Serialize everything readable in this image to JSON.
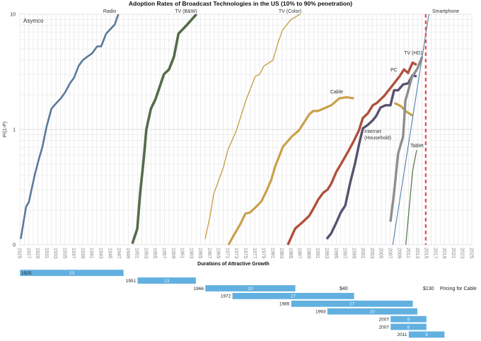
{
  "chart_data": {
    "type": "line",
    "title": "Adoption Rates of Broadcast Technologies in the US (10% to 90% penetration)",
    "xlabel": "Durations of Attractive Growth",
    "ylabel": "P/(1-P)",
    "yscale": "log10",
    "ylim_log10": [
      -1,
      1
    ],
    "xlim": [
      1925,
      2025
    ],
    "grid": true,
    "annotation": "Asymco",
    "yticks": [
      {
        "v": -1,
        "label": "0"
      },
      {
        "v": 0,
        "label": "1"
      },
      {
        "v": 1,
        "label": "10"
      }
    ],
    "xticks": [
      "1925",
      "1927",
      "1929",
      "1931",
      "1933",
      "1935",
      "1937",
      "1939",
      "1941",
      "1943",
      "1945",
      "1947",
      "1949",
      "1951",
      "1953",
      "1955",
      "1957",
      "1959",
      "1961",
      "1963",
      "1965",
      "1967",
      "1969",
      "1971",
      "1973",
      "1975",
      "1977",
      "1979",
      "1981",
      "1983",
      "1985",
      "1987",
      "1989",
      "1991",
      "1993",
      "1995",
      "1997",
      "1999",
      "2001",
      "2003",
      "2005",
      "2007",
      "2009",
      "2011",
      "2013",
      "2015",
      "2017",
      "2019",
      "2021",
      "2023",
      "2025"
    ],
    "series": [
      {
        "name": "Radio",
        "label": "Radio",
        "color": "#5b7a99",
        "points": [
          [
            1925.2,
            -0.95
          ],
          [
            1926.4,
            -0.67
          ],
          [
            1927.0,
            -0.63
          ],
          [
            1927.7,
            -0.5
          ],
          [
            1928.4,
            -0.38
          ],
          [
            1929.2,
            -0.26
          ],
          [
            1930.0,
            -0.15
          ],
          [
            1930.9,
            0.02
          ],
          [
            1932.0,
            0.18
          ],
          [
            1933.1,
            0.23
          ],
          [
            1934.1,
            0.27
          ],
          [
            1935.0,
            0.32
          ],
          [
            1936.1,
            0.4
          ],
          [
            1937.0,
            0.45
          ],
          [
            1938.0,
            0.55
          ],
          [
            1938.9,
            0.6
          ],
          [
            1939.9,
            0.63
          ],
          [
            1941.0,
            0.66
          ],
          [
            1942.1,
            0.72
          ],
          [
            1943.0,
            0.72
          ],
          [
            1944.1,
            0.83
          ],
          [
            1946.0,
            0.91
          ],
          [
            1946.8,
            1.0
          ]
        ]
      },
      {
        "name": "TV (B&W)",
        "label": "TV (B&W)",
        "color": "#566b4a",
        "points": [
          [
            1949.9,
            -0.99
          ],
          [
            1951.0,
            -0.86
          ],
          [
            1951.6,
            -0.56
          ],
          [
            1952.4,
            -0.26
          ],
          [
            1953.0,
            0.0
          ],
          [
            1954.0,
            0.18
          ],
          [
            1955.0,
            0.26
          ],
          [
            1956.9,
            0.48
          ],
          [
            1958.0,
            0.52
          ],
          [
            1959.1,
            0.63
          ],
          [
            1960.1,
            0.83
          ],
          [
            1961.8,
            0.9
          ],
          [
            1964.1,
            1.0
          ]
        ]
      },
      {
        "name": "TV (Color)",
        "label": "TV (Color)",
        "color": "#c9a04a",
        "points": [
          [
            1966.0,
            -0.95
          ],
          [
            1967.1,
            -0.75
          ],
          [
            1967.9,
            -0.56
          ],
          [
            1969.0,
            -0.44
          ],
          [
            1970.1,
            -0.32
          ],
          [
            1971.0,
            -0.18
          ],
          [
            1971.9,
            -0.1
          ],
          [
            1972.9,
            -0.01
          ],
          [
            1973.8,
            0.1
          ],
          [
            1975.1,
            0.26
          ],
          [
            1977.1,
            0.46
          ],
          [
            1978.1,
            0.48
          ],
          [
            1979.0,
            0.55
          ],
          [
            1981.0,
            0.6
          ],
          [
            1982.1,
            0.75
          ],
          [
            1983.1,
            0.86
          ],
          [
            1984.9,
            0.95
          ],
          [
            1987.0,
            1.0
          ]
        ]
      },
      {
        "name": "Cable",
        "label": "Cable",
        "color": "#c9a04a",
        "points": [
          [
            1971.2,
            -1.0
          ],
          [
            1972.3,
            -0.92
          ],
          [
            1973.8,
            -0.82
          ],
          [
            1974.9,
            -0.73
          ],
          [
            1975.9,
            -0.72
          ],
          [
            1977.3,
            -0.67
          ],
          [
            1978.5,
            -0.62
          ],
          [
            1979.6,
            -0.53
          ],
          [
            1980.6,
            -0.44
          ],
          [
            1981.5,
            -0.32
          ],
          [
            1982.4,
            -0.23
          ],
          [
            1983.2,
            -0.15
          ],
          [
            1985.2,
            -0.06
          ],
          [
            1986.7,
            -0.01
          ],
          [
            1987.9,
            0.06
          ],
          [
            1989.0,
            0.13
          ],
          [
            1989.9,
            0.16
          ],
          [
            1991.0,
            0.16
          ],
          [
            1993.9,
            0.21
          ],
          [
            1995.7,
            0.27
          ],
          [
            1997.3,
            0.28
          ],
          [
            1998.9,
            0.27
          ]
        ]
      },
      {
        "name": "Cable (later)",
        "label": "",
        "color": "#c9a04a",
        "points": [
          [
            2007.9,
            0.23
          ],
          [
            2009.4,
            0.2
          ],
          [
            2010.3,
            0.16
          ],
          [
            2011.9,
            0.12
          ]
        ]
      },
      {
        "name": "PC",
        "label": "PC",
        "color": "#b0503c",
        "points": [
          [
            1984.3,
            -1.0
          ],
          [
            1985.9,
            -0.86
          ],
          [
            1987.4,
            -0.81
          ],
          [
            1989.0,
            -0.75
          ],
          [
            1989.9,
            -0.69
          ],
          [
            1991.0,
            -0.61
          ],
          [
            1992.1,
            -0.55
          ],
          [
            1993.1,
            -0.52
          ],
          [
            1993.9,
            -0.47
          ],
          [
            1995.0,
            -0.37
          ],
          [
            1996.2,
            -0.29
          ],
          [
            1997.8,
            -0.18
          ],
          [
            1998.9,
            -0.1
          ],
          [
            2000.0,
            -0.01
          ],
          [
            2000.9,
            0.1
          ],
          [
            2002.0,
            0.14
          ],
          [
            2003.1,
            0.21
          ],
          [
            2004.0,
            0.23
          ],
          [
            2005.6,
            0.29
          ],
          [
            2007.2,
            0.37
          ],
          [
            2009.0,
            0.46
          ],
          [
            2010.0,
            0.52
          ],
          [
            2010.9,
            0.49
          ],
          [
            2011.9,
            0.58
          ],
          [
            2012.8,
            0.56
          ]
        ]
      },
      {
        "name": "Internet (Household)",
        "label": "Internet",
        "label2": "(Household)",
        "color": "#5a5170",
        "points": [
          [
            1992.9,
            -0.95
          ],
          [
            1993.9,
            -0.9
          ],
          [
            1995.0,
            -0.81
          ],
          [
            1996.0,
            -0.72
          ],
          [
            1997.0,
            -0.66
          ],
          [
            1998.1,
            -0.46
          ],
          [
            1999.2,
            -0.29
          ],
          [
            2000.1,
            -0.12
          ],
          [
            2000.9,
            0.01
          ],
          [
            2002.0,
            0.04
          ],
          [
            2003.1,
            0.08
          ],
          [
            2003.9,
            0.12
          ],
          [
            2004.8,
            0.19
          ],
          [
            2005.9,
            0.21
          ],
          [
            2007.0,
            0.21
          ],
          [
            2007.8,
            0.34
          ],
          [
            2008.7,
            0.34
          ],
          [
            2009.8,
            0.39
          ],
          [
            2010.9,
            0.4
          ],
          [
            2011.9,
            0.47
          ],
          [
            2012.8,
            0.46
          ]
        ]
      },
      {
        "name": "TV (HD)",
        "label": "TV (HD)",
        "color": "#8e8e8e",
        "points": [
          [
            2007.0,
            -0.8
          ],
          [
            2007.8,
            -0.55
          ],
          [
            2008.7,
            -0.21
          ],
          [
            2009.8,
            -0.06
          ],
          [
            2010.3,
            0.25
          ],
          [
            2010.9,
            0.33
          ],
          [
            2011.7,
            0.45
          ],
          [
            2013.0,
            0.53
          ],
          [
            2014.0,
            0.63
          ]
        ]
      },
      {
        "name": "Smartphone",
        "label": "Smartphone",
        "color": "#4f7faa",
        "points": [
          [
            2007.5,
            -1.0
          ],
          [
            2015.5,
            1.0
          ]
        ]
      },
      {
        "name": "Tablet",
        "label": "Tablet",
        "color": "#5a7a4a",
        "points": [
          [
            2010.4,
            -1.0
          ],
          [
            2011.9,
            -0.36
          ],
          [
            2012.8,
            -0.18
          ]
        ]
      }
    ],
    "reference_line": {
      "x": 2014.8,
      "color": "#f0484e",
      "style": "dashed"
    },
    "gantt": {
      "color": "#62b0e0",
      "rows": [
        {
          "start": 1925,
          "duration": 23,
          "start_label": "1925",
          "duration_label": "23"
        },
        {
          "start": 1951,
          "duration": 13,
          "start_label": "1951",
          "duration_label": "13"
        },
        {
          "start": 1966,
          "duration": 20,
          "start_label": "1966",
          "duration_label": "20"
        },
        {
          "start": 1972,
          "duration": 27,
          "start_label": "1972",
          "duration_label": "27"
        },
        {
          "start": 1985,
          "duration": 27,
          "start_label": "1985",
          "duration_label": "27"
        },
        {
          "start": 1993,
          "duration": 20,
          "start_label": "1993",
          "duration_label": "20"
        },
        {
          "start": 2007,
          "duration": 8,
          "start_label": "2007",
          "duration_label": "8"
        },
        {
          "start": 2007,
          "duration": 8,
          "start_label": "2007",
          "duration_label": "8"
        },
        {
          "start": 2011,
          "duration": 8,
          "start_label": "2011",
          "duration_label": "8"
        }
      ],
      "pricing": {
        "low": "$40",
        "high": "$130",
        "label": "Pricing for Cable"
      }
    }
  }
}
